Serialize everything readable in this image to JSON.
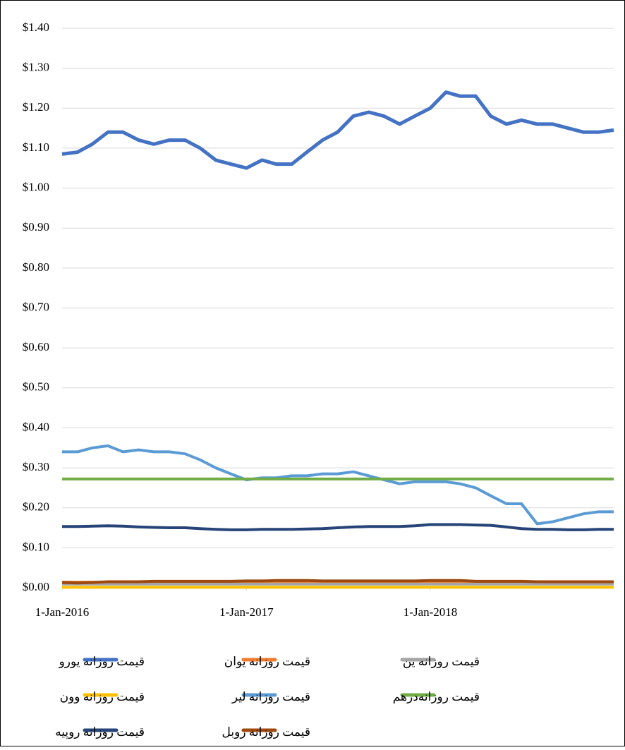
{
  "chart_data": {
    "type": "line",
    "x": [
      "2016-01-01",
      "2016-02-01",
      "2016-03-01",
      "2016-04-01",
      "2016-05-01",
      "2016-06-01",
      "2016-07-01",
      "2016-08-01",
      "2016-09-01",
      "2016-10-01",
      "2016-11-01",
      "2016-12-01",
      "2017-01-01",
      "2017-02-01",
      "2017-03-01",
      "2017-04-01",
      "2017-05-01",
      "2017-06-01",
      "2017-07-01",
      "2017-08-01",
      "2017-09-01",
      "2017-10-01",
      "2017-11-01",
      "2017-12-01",
      "2018-01-01",
      "2018-02-01",
      "2018-03-01",
      "2018-04-01",
      "2018-05-01",
      "2018-06-01",
      "2018-07-01",
      "2018-08-01",
      "2018-09-01",
      "2018-10-01",
      "2018-11-01",
      "2018-12-01",
      "2018-12-31"
    ],
    "xlim": [
      "2016-01-01",
      "2018-12-31"
    ],
    "xticks": [
      {
        "value": "2016-01-01",
        "label": "1-Jan-2016"
      },
      {
        "value": "2017-01-01",
        "label": "1-Jan-2017"
      },
      {
        "value": "2018-01-01",
        "label": "1-Jan-2018"
      }
    ],
    "ylim": [
      0,
      1.4
    ],
    "yticks": [
      {
        "value": 0,
        "label": "$0.00"
      },
      {
        "value": 0.1,
        "label": "$0.10"
      },
      {
        "value": 0.2,
        "label": "$0.20"
      },
      {
        "value": 0.3,
        "label": "$0.30"
      },
      {
        "value": 0.4,
        "label": "$0.40"
      },
      {
        "value": 0.5,
        "label": "$0.50"
      },
      {
        "value": 0.6,
        "label": "$0.60"
      },
      {
        "value": 0.7,
        "label": "$0.70"
      },
      {
        "value": 0.8,
        "label": "$0.80"
      },
      {
        "value": 0.9,
        "label": "$0.90"
      },
      {
        "value": 1.0,
        "label": "$1.00"
      },
      {
        "value": 1.1,
        "label": "$1.10"
      },
      {
        "value": 1.2,
        "label": "$1.20"
      },
      {
        "value": 1.3,
        "label": "$1.30"
      },
      {
        "value": 1.4,
        "label": "$1.40"
      }
    ],
    "grid": true,
    "legend": "bottom",
    "series": [
      {
        "name": "قیمت روزانه یورو",
        "color": "#4472c4",
        "values": [
          1.085,
          1.09,
          1.11,
          1.14,
          1.14,
          1.12,
          1.11,
          1.12,
          1.12,
          1.1,
          1.07,
          1.06,
          1.05,
          1.07,
          1.06,
          1.06,
          1.09,
          1.12,
          1.14,
          1.18,
          1.19,
          1.18,
          1.16,
          1.18,
          1.2,
          1.24,
          1.23,
          1.23,
          1.18,
          1.16,
          1.17,
          1.16,
          1.16,
          1.15,
          1.14,
          1.14,
          1.145
        ]
      },
      {
        "name": "قیمت روزانه یوان",
        "color": "#ed7d31",
        "values": [
          0.014,
          0.014,
          0.014,
          0.014,
          0.014,
          0.014,
          0.014,
          0.014,
          0.014,
          0.014,
          0.014,
          0.014,
          0.014,
          0.014,
          0.014,
          0.014,
          0.014,
          0.014,
          0.014,
          0.014,
          0.014,
          0.014,
          0.014,
          0.014,
          0.014,
          0.014,
          0.014,
          0.014,
          0.014,
          0.014,
          0.014,
          0.014,
          0.014,
          0.014,
          0.014,
          0.014,
          0.014
        ]
      },
      {
        "name": "قیمت روزانه ین",
        "color": "#a5a5a5",
        "values": [
          0.009,
          0.009,
          0.009,
          0.009,
          0.009,
          0.009,
          0.009,
          0.009,
          0.009,
          0.009,
          0.009,
          0.009,
          0.009,
          0.009,
          0.009,
          0.009,
          0.009,
          0.009,
          0.009,
          0.009,
          0.009,
          0.009,
          0.009,
          0.009,
          0.009,
          0.009,
          0.009,
          0.009,
          0.009,
          0.009,
          0.009,
          0.009,
          0.009,
          0.009,
          0.009,
          0.009,
          0.009
        ]
      },
      {
        "name": "قیمت روزانه وون",
        "color": "#ffc000",
        "values": [
          0.001,
          0.001,
          0.001,
          0.001,
          0.001,
          0.001,
          0.001,
          0.001,
          0.001,
          0.001,
          0.001,
          0.001,
          0.001,
          0.001,
          0.001,
          0.001,
          0.001,
          0.001,
          0.001,
          0.001,
          0.001,
          0.001,
          0.001,
          0.001,
          0.001,
          0.001,
          0.001,
          0.001,
          0.001,
          0.001,
          0.001,
          0.001,
          0.001,
          0.001,
          0.001,
          0.001,
          0.001
        ]
      },
      {
        "name": "قیمت روزانه لیر",
        "color": "#5b9bd5",
        "values": [
          0.34,
          0.34,
          0.35,
          0.355,
          0.34,
          0.345,
          0.34,
          0.34,
          0.335,
          0.32,
          0.3,
          0.285,
          0.27,
          0.275,
          0.275,
          0.28,
          0.28,
          0.285,
          0.285,
          0.29,
          0.28,
          0.27,
          0.26,
          0.265,
          0.265,
          0.265,
          0.26,
          0.25,
          0.23,
          0.21,
          0.21,
          0.16,
          0.165,
          0.175,
          0.185,
          0.19,
          0.19
        ]
      },
      {
        "name": "قیمت روزانه‌درهم",
        "color": "#70ad47",
        "values": [
          0.272,
          0.272,
          0.272,
          0.272,
          0.272,
          0.272,
          0.272,
          0.272,
          0.272,
          0.272,
          0.272,
          0.272,
          0.272,
          0.272,
          0.272,
          0.272,
          0.272,
          0.272,
          0.272,
          0.272,
          0.272,
          0.272,
          0.272,
          0.272,
          0.272,
          0.272,
          0.272,
          0.272,
          0.272,
          0.272,
          0.272,
          0.272,
          0.272,
          0.272,
          0.272,
          0.272,
          0.272
        ]
      },
      {
        "name": "قیمت روزانه روپیه",
        "color": "#264478",
        "values": [
          0.153,
          0.153,
          0.154,
          0.155,
          0.154,
          0.152,
          0.151,
          0.15,
          0.15,
          0.148,
          0.146,
          0.145,
          0.145,
          0.146,
          0.146,
          0.146,
          0.147,
          0.148,
          0.15,
          0.152,
          0.153,
          0.153,
          0.153,
          0.155,
          0.158,
          0.158,
          0.158,
          0.157,
          0.156,
          0.152,
          0.148,
          0.146,
          0.146,
          0.145,
          0.145,
          0.146,
          0.146
        ]
      },
      {
        "name": "قیمت روزانه روبل",
        "color": "#9e480e",
        "values": [
          0.013,
          0.012,
          0.013,
          0.015,
          0.015,
          0.015,
          0.016,
          0.016,
          0.016,
          0.016,
          0.016,
          0.016,
          0.017,
          0.017,
          0.018,
          0.018,
          0.018,
          0.017,
          0.017,
          0.017,
          0.017,
          0.017,
          0.017,
          0.017,
          0.018,
          0.018,
          0.018,
          0.016,
          0.016,
          0.016,
          0.016,
          0.015,
          0.015,
          0.015,
          0.015,
          0.015,
          0.015
        ]
      }
    ]
  }
}
